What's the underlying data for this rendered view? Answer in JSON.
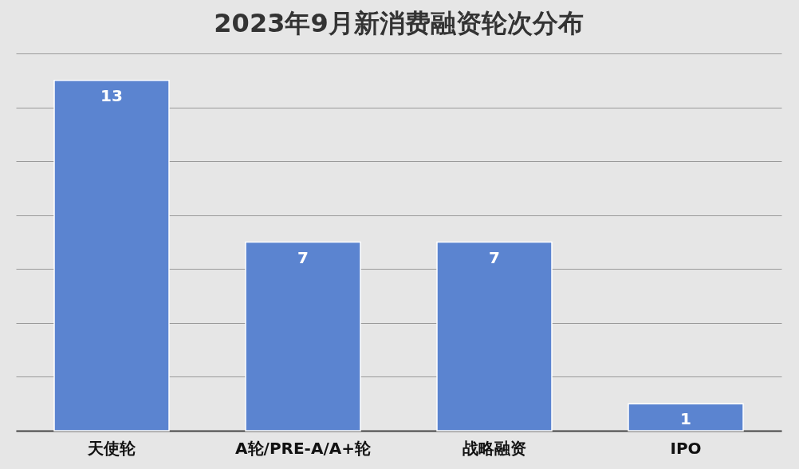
{
  "chart_data": {
    "type": "bar",
    "title": "2023年9月新消费融资轮次分布",
    "categories": [
      "天使轮",
      "A轮/PRE-A/A+轮",
      "战略融资",
      "IPO"
    ],
    "values": [
      13,
      7,
      7,
      1
    ],
    "color": "#5b84d0",
    "ylim": [
      0,
      14
    ],
    "yticks": [
      {
        "value": 0,
        "label": null
      },
      {
        "value": 2,
        "label": null
      },
      {
        "value": 4,
        "label": null
      },
      {
        "value": 6,
        "label": null
      },
      {
        "value": 8,
        "label": null
      },
      {
        "value": 10,
        "label": null
      },
      {
        "value": 12,
        "label": null
      },
      {
        "value": 14,
        "label": null
      }
    ],
    "grid": "y",
    "data_labels": true
  }
}
